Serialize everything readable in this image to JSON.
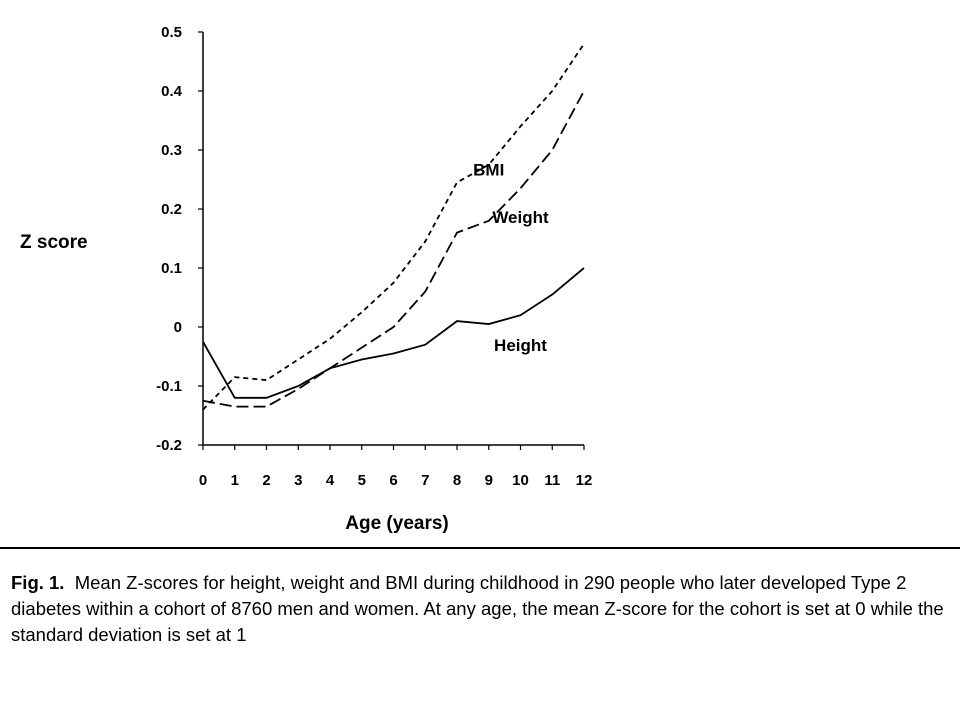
{
  "chart_data": {
    "type": "line",
    "title": "",
    "xlabel": "Age (years)",
    "ylabel": "Z score",
    "x": [
      0,
      1,
      2,
      3,
      4,
      5,
      6,
      7,
      8,
      9,
      10,
      11,
      12
    ],
    "xticks": [
      "0",
      "1",
      "2",
      "3",
      "4",
      "5",
      "6",
      "7",
      "8",
      "9",
      "10",
      "11",
      "12"
    ],
    "yticks": [
      "-0.2",
      "-0.1",
      "0",
      "0.1",
      "0.2",
      "0.3",
      "0.4",
      "0.5"
    ],
    "ylim": [
      -0.2,
      0.5
    ],
    "xlim": [
      0,
      12
    ],
    "grid": false,
    "series": [
      {
        "name": "BMI",
        "style": "dashed-short",
        "values": [
          -0.14,
          -0.085,
          -0.09,
          -0.055,
          -0.02,
          0.025,
          0.075,
          0.145,
          0.245,
          0.275,
          0.34,
          0.4,
          0.48
        ]
      },
      {
        "name": "Weight",
        "style": "dashed-long",
        "values": [
          -0.125,
          -0.135,
          -0.135,
          -0.105,
          -0.07,
          -0.035,
          0.0,
          0.06,
          0.16,
          0.18,
          0.235,
          0.3,
          0.4
        ]
      },
      {
        "name": "Height",
        "style": "solid",
        "values": [
          -0.025,
          -0.12,
          -0.12,
          -0.1,
          -0.07,
          -0.055,
          -0.045,
          -0.03,
          0.01,
          0.005,
          0.02,
          0.055,
          0.1
        ]
      }
    ],
    "colors": {
      "line": "#000000"
    }
  },
  "caption": {
    "fig_label": "Fig. 1.",
    "text": "Mean Z-scores for height, weight and BMI during childhood in 290 people who later developed Type 2 diabetes within a cohort of 8760 men and women. At any age, the mean Z-score for the cohort is set at 0 while the standard deviation is set at 1"
  }
}
